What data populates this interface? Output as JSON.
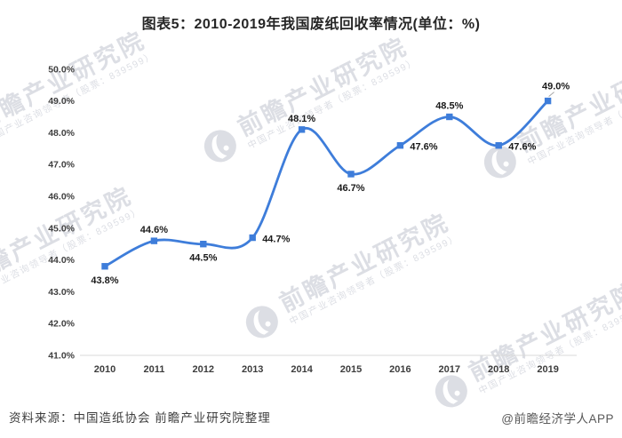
{
  "title": "图表5：2010-2019年我国废纸回收率情况(单位：%)",
  "source_note": "资料来源：中国造纸协会 前瞻产业研究院整理",
  "credit": "@前瞻经济学人APP",
  "watermark": {
    "brand_large": "前瞻产业研究院",
    "brand_small": "中国产业咨询领导者（股票：839599）"
  },
  "colors": {
    "line": "#3E7DDA",
    "axis_line": "#D8D8D8",
    "leader_line": "#A6A6A6",
    "data_label": "#1A1A1A",
    "tick_label": "#404040"
  },
  "chart_data": {
    "type": "line",
    "title": "图表5：2010-2019年我国废纸回收率情况(单位：%)",
    "categories": [
      "2010",
      "2011",
      "2012",
      "2013",
      "2014",
      "2015",
      "2016",
      "2017",
      "2018",
      "2019"
    ],
    "values": [
      43.8,
      44.6,
      44.5,
      44.7,
      48.1,
      46.7,
      47.6,
      48.5,
      47.6,
      49.0
    ],
    "data_labels": [
      "43.8%",
      "44.6%",
      "44.5%",
      "44.7%",
      "48.1%",
      "46.7%",
      "47.6%",
      "48.5%",
      "47.6%",
      "49.0%"
    ],
    "label_positions": [
      "below",
      "above",
      "below",
      "right",
      "above",
      "below",
      "right",
      "above",
      "right",
      "above-leader"
    ],
    "xlabel": "",
    "ylabel": "",
    "ylim": [
      41.0,
      50.0
    ],
    "ytick_step": 1.0,
    "ytick_labels": [
      "41.0%",
      "42.0%",
      "43.0%",
      "44.0%",
      "45.0%",
      "46.0%",
      "47.0%",
      "48.0%",
      "49.0%",
      "50.0%"
    ],
    "grid": false,
    "legend": "none",
    "marker": "square",
    "smooth": true
  }
}
